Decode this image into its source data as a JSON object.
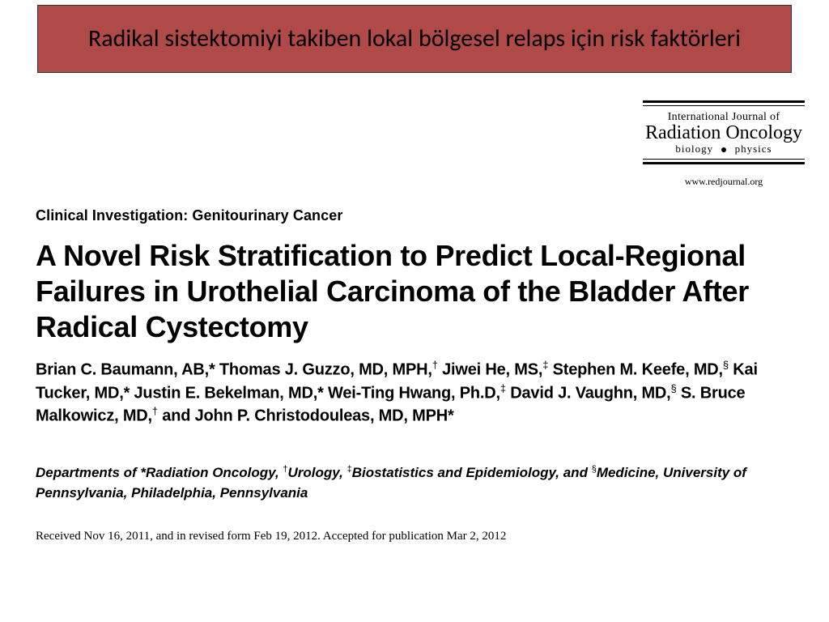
{
  "banner": {
    "title": "Radikal sistektomiyi takiben lokal bölgesel relaps için risk faktörleri",
    "background_color": "#b04a49",
    "border_color": "#333333",
    "text_color": "#000000",
    "fontsize": 30
  },
  "journal": {
    "line1": "International Journal of",
    "line2": "Radiation Oncology",
    "line3_left": "biology",
    "line3_right": "physics",
    "url": "www.redjournal.org"
  },
  "section_label": "Clinical Investigation: Genitourinary Cancer",
  "article_title": "A Novel Risk Stratification to Predict Local-Regional Failures in Urothelial Carcinoma of the Bladder After Radical Cystectomy",
  "authors_html": "Brian C. Baumann, AB,* Thomas J. Guzzo, MD, MPH,<sup>†</sup> Jiwei He, MS,<sup>‡</sup> Stephen M. Keefe, MD,<sup>§</sup> Kai Tucker, MD,* Justin E. Bekelman, MD,* Wei-Ting Hwang, Ph.D,<sup>‡</sup> David J. Vaughn, MD,<sup>§</sup> S. Bruce Malkowicz, MD,<sup>†</sup> and John P. Christodouleas, MD, MPH*",
  "affiliations_html": "Departments of *Radiation Oncology, <sup>†</sup>Urology, <sup>‡</sup>Biostatistics and Epidemiology, and <sup>§</sup>Medicine, University of Pennsylvania, Philadelphia, Pennsylvania",
  "received": "Received Nov 16, 2011, and in revised form Feb 19, 2012. Accepted for publication Mar 2, 2012",
  "style": {
    "page_background": "#ffffff",
    "text_color": "#000000",
    "banner_font": "Calibri, Arial, sans-serif",
    "title_font": "Arial, Helvetica, sans-serif",
    "body_serif_font": "Georgia, 'Times New Roman', serif",
    "article_title_fontsize": 36,
    "authors_fontsize": 20,
    "affiliations_fontsize": 17,
    "received_fontsize": 15
  }
}
